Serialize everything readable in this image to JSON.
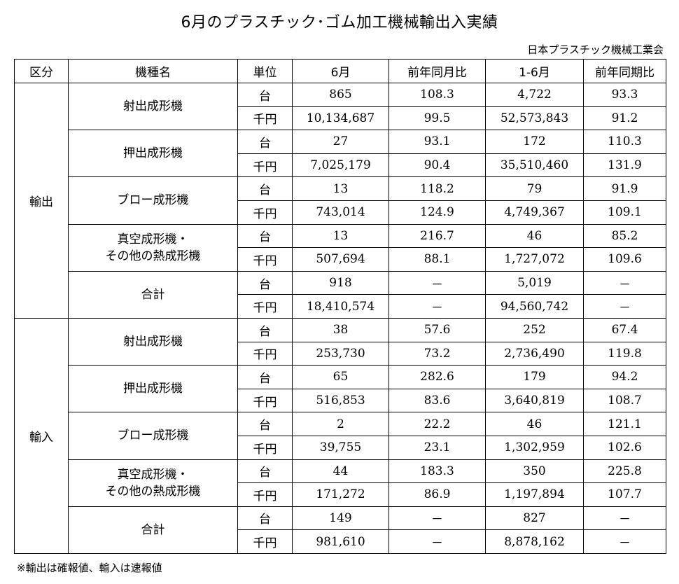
{
  "title": "6月のプラスチック･ゴム加工機械輸出入実績",
  "source": "日本プラスチック機械工業会",
  "headers": [
    "区分",
    "機種名",
    "単位",
    "6月",
    "前年同月比",
    "1-6月",
    "前年同期比"
  ],
  "sections": [
    {
      "label": "輸出",
      "groups": [
        {
          "name": [
            "射出成形機"
          ],
          "rows": [
            {
              "unit": "台",
              "m6": "865",
              "yoy_m": "108.3",
              "ytd": "4,722",
              "yoy_ytd": "93.3"
            },
            {
              "unit": "千円",
              "m6": "10,134,687",
              "yoy_m": "99.5",
              "ytd": "52,573,843",
              "yoy_ytd": "91.2"
            }
          ]
        },
        {
          "name": [
            "押出成形機"
          ],
          "rows": [
            {
              "unit": "台",
              "m6": "27",
              "yoy_m": "93.1",
              "ytd": "172",
              "yoy_ytd": "110.3"
            },
            {
              "unit": "千円",
              "m6": "7,025,179",
              "yoy_m": "90.4",
              "ytd": "35,510,460",
              "yoy_ytd": "131.9"
            }
          ]
        },
        {
          "name": [
            "ブロー成形機"
          ],
          "rows": [
            {
              "unit": "台",
              "m6": "13",
              "yoy_m": "118.2",
              "ytd": "79",
              "yoy_ytd": "91.9"
            },
            {
              "unit": "千円",
              "m6": "743,014",
              "yoy_m": "124.9",
              "ytd": "4,749,367",
              "yoy_ytd": "109.1"
            }
          ]
        },
        {
          "name": [
            "真空成形機・",
            "その他の熱成形機"
          ],
          "rows": [
            {
              "unit": "台",
              "m6": "13",
              "yoy_m": "216.7",
              "ytd": "46",
              "yoy_ytd": "85.2"
            },
            {
              "unit": "千円",
              "m6": "507,694",
              "yoy_m": "88.1",
              "ytd": "1,727,072",
              "yoy_ytd": "109.6"
            }
          ]
        },
        {
          "name": [
            "合計"
          ],
          "rows": [
            {
              "unit": "台",
              "m6": "918",
              "yoy_m": "－",
              "ytd": "5,019",
              "yoy_ytd": "－"
            },
            {
              "unit": "千円",
              "m6": "18,410,574",
              "yoy_m": "－",
              "ytd": "94,560,742",
              "yoy_ytd": "－"
            }
          ]
        }
      ]
    },
    {
      "label": "輸入",
      "groups": [
        {
          "name": [
            "射出成形機"
          ],
          "rows": [
            {
              "unit": "台",
              "m6": "38",
              "yoy_m": "57.6",
              "ytd": "252",
              "yoy_ytd": "67.4"
            },
            {
              "unit": "千円",
              "m6": "253,730",
              "yoy_m": "73.2",
              "ytd": "2,736,490",
              "yoy_ytd": "119.8"
            }
          ]
        },
        {
          "name": [
            "押出成形機"
          ],
          "rows": [
            {
              "unit": "台",
              "m6": "65",
              "yoy_m": "282.6",
              "ytd": "179",
              "yoy_ytd": "94.2"
            },
            {
              "unit": "千円",
              "m6": "516,853",
              "yoy_m": "83.6",
              "ytd": "3,640,819",
              "yoy_ytd": "108.7"
            }
          ]
        },
        {
          "name": [
            "ブロー成形機"
          ],
          "rows": [
            {
              "unit": "台",
              "m6": "2",
              "yoy_m": "22.2",
              "ytd": "46",
              "yoy_ytd": "121.1"
            },
            {
              "unit": "千円",
              "m6": "39,755",
              "yoy_m": "23.1",
              "ytd": "1,302,959",
              "yoy_ytd": "102.6"
            }
          ]
        },
        {
          "name": [
            "真空成形機・",
            "その他の熱成形機"
          ],
          "rows": [
            {
              "unit": "台",
              "m6": "44",
              "yoy_m": "183.3",
              "ytd": "350",
              "yoy_ytd": "225.8"
            },
            {
              "unit": "千円",
              "m6": "171,272",
              "yoy_m": "86.9",
              "ytd": "1,197,894",
              "yoy_ytd": "107.7"
            }
          ]
        },
        {
          "name": [
            "合計"
          ],
          "rows": [
            {
              "unit": "台",
              "m6": "149",
              "yoy_m": "－",
              "ytd": "827",
              "yoy_ytd": "－"
            },
            {
              "unit": "千円",
              "m6": "981,610",
              "yoy_m": "－",
              "ytd": "8,878,162",
              "yoy_ytd": "－"
            }
          ]
        }
      ]
    }
  ],
  "note": "※輸出は確報値、輸入は速報値"
}
